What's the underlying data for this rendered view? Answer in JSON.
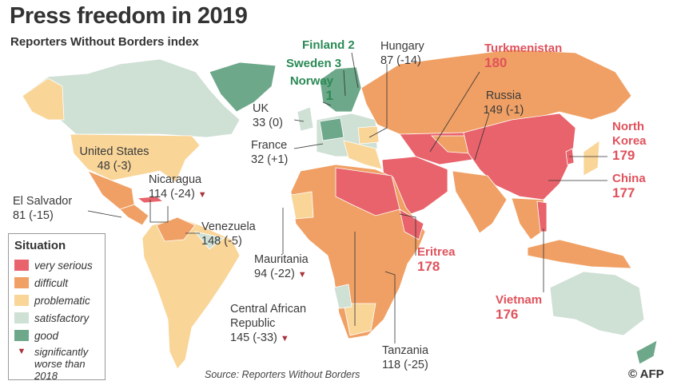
{
  "header": {
    "title": "Press freedom in 2019",
    "subtitle": "Reporters Without Borders index"
  },
  "callouts": [
    {
      "name": "Finland",
      "rank": 2,
      "color": "#2a8a55"
    },
    {
      "name": "Sweden",
      "rank": 3,
      "color": "#2a8a55"
    },
    {
      "name": "Norway",
      "rank": 1,
      "color": "#2a8a55"
    },
    {
      "name": "Hungary",
      "rank": 87,
      "change": "(-14)"
    },
    {
      "name": "Turkmenistan",
      "rank": 180,
      "color": "#e0525c"
    },
    {
      "name": "Russia",
      "rank": 149,
      "change": "(-1)"
    },
    {
      "name": "UK",
      "rank": 33,
      "change": "(0)"
    },
    {
      "name": "France",
      "rank": 32,
      "change": "(+1)"
    },
    {
      "name": "United States",
      "rank": 48,
      "change": "(-3)"
    },
    {
      "name": "Nicaragua",
      "rank": 114,
      "change": "(-24)",
      "worse": true
    },
    {
      "name": "El Salvador",
      "rank": 81,
      "change": "(-15)"
    },
    {
      "name": "Venezuela",
      "rank": 148,
      "change": "(-5)"
    },
    {
      "name": "Mauritania",
      "rank": 94,
      "change": "(-22)",
      "worse": true
    },
    {
      "name": "Central African Republic",
      "rank": 145,
      "change": "(-33)",
      "worse": true
    },
    {
      "name": "Eritrea",
      "rank": 178,
      "color": "#e0525c"
    },
    {
      "name": "Tanzania",
      "rank": 118,
      "change": "(-25)"
    },
    {
      "name": "North Korea",
      "rank": 179,
      "color": "#e0525c"
    },
    {
      "name": "China",
      "rank": 177,
      "color": "#e0525c"
    },
    {
      "name": "Vietnam",
      "rank": 176,
      "color": "#e0525c"
    }
  ],
  "legend": {
    "title": "Situation",
    "items": [
      {
        "label": "very serious",
        "color": "#e8636b"
      },
      {
        "label": "difficult",
        "color": "#f0a064"
      },
      {
        "label": "problematic",
        "color": "#f9d598"
      },
      {
        "label": "satisfactory",
        "color": "#cfe0d5"
      },
      {
        "label": "good",
        "color": "#6ea88a"
      }
    ],
    "worse": {
      "label": "significantly worse than 2018",
      "color": "#a8323a"
    }
  },
  "footer": {
    "source": "Source: Reporters Without Borders",
    "credit": "© AFP"
  }
}
